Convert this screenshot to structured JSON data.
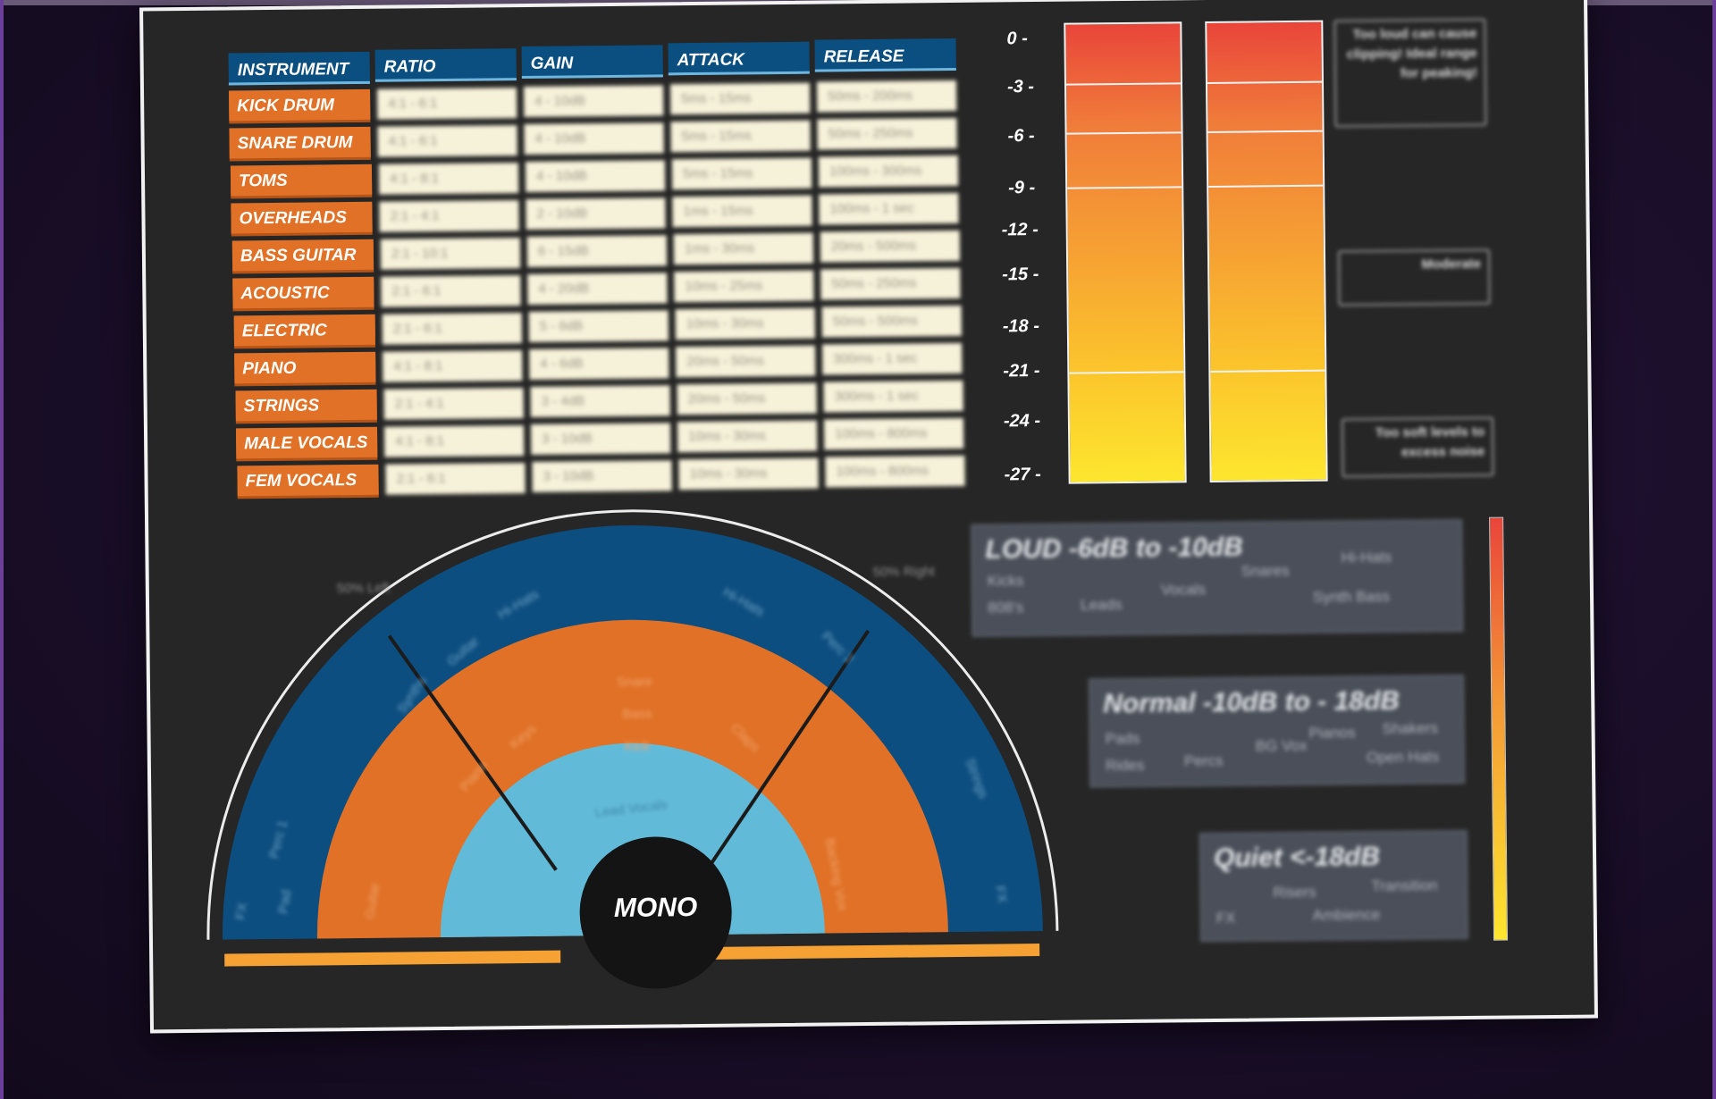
{
  "table": {
    "headers": [
      "INSTRUMENT",
      "RATIO",
      "GAIN",
      "ATTACK",
      "RELEASE"
    ],
    "rows": [
      {
        "instrument": "KICK DRUM",
        "ratio": "4:1 - 6:1",
        "gain": "4 - 10dB",
        "attack": "5ms - 15ms",
        "release": "50ms - 200ms"
      },
      {
        "instrument": "SNARE DRUM",
        "ratio": "4:1 - 6:1",
        "gain": "4 - 10dB",
        "attack": "5ms - 15ms",
        "release": "50ms - 250ms"
      },
      {
        "instrument": "TOMS",
        "ratio": "4:1 - 8:1",
        "gain": "4 - 10dB",
        "attack": "5ms - 15ms",
        "release": "100ms - 300ms"
      },
      {
        "instrument": "OVERHEADS",
        "ratio": "2:1 - 4:1",
        "gain": "2 - 10dB",
        "attack": "1ms - 15ms",
        "release": "100ms - 1 sec"
      },
      {
        "instrument": "BASS GUITAR",
        "ratio": "2:1 - 10:1",
        "gain": "6 - 15dB",
        "attack": "1ms - 30ms",
        "release": "20ms - 500ms"
      },
      {
        "instrument": "ACOUSTIC",
        "ratio": "2:1 - 6:1",
        "gain": "4 - 20dB",
        "attack": "10ms - 25ms",
        "release": "50ms - 250ms"
      },
      {
        "instrument": "ELECTRIC",
        "ratio": "2:1 - 6:1",
        "gain": "5 - 6dB",
        "attack": "10ms - 30ms",
        "release": "50ms - 500ms"
      },
      {
        "instrument": "PIANO",
        "ratio": "4:1 - 8:1",
        "gain": "4 - 6dB",
        "attack": "20ms - 50ms",
        "release": "300ms - 1 sec"
      },
      {
        "instrument": "STRINGS",
        "ratio": "2:1 - 4:1",
        "gain": "3 - 4dB",
        "attack": "20ms - 50ms",
        "release": "300ms - 1 sec"
      },
      {
        "instrument": "MALE VOCALS",
        "ratio": "4:1 - 8:1",
        "gain": "3 - 10dB",
        "attack": "10ms - 30ms",
        "release": "100ms - 800ms"
      },
      {
        "instrument": "FEM VOCALS",
        "ratio": "2:1 - 6:1",
        "gain": "3 - 10dB",
        "attack": "10ms - 30ms",
        "release": "100ms - 800ms"
      }
    ]
  },
  "meter": {
    "scale": [
      "0 -",
      "-3 -",
      "-6 -",
      "-9 -",
      "-12 -",
      "-15 -",
      "-18 -",
      "-21 -",
      "-24 -",
      "-27 -"
    ],
    "notes": {
      "top": "Too loud can cause clipping! Ideal range for peaking!",
      "middle": "Moderate",
      "bottom": "Too soft levels to excess noise"
    }
  },
  "levels": [
    {
      "title": "LOUD -6dB to -10dB",
      "words": [
        "Kicks",
        "Snares",
        "Hi-Hats",
        "808's",
        "Leads",
        "Vocals",
        "Synth Bass"
      ]
    },
    {
      "title": "Normal -10dB to - 18dB",
      "words": [
        "Pads",
        "Pianos",
        "Shakers",
        "Rides",
        "Percs",
        "BG Vox",
        "Open Hats"
      ]
    },
    {
      "title": "Quiet <-18dB",
      "words": [
        "Risers",
        "Transition",
        "FX",
        "Ambience"
      ]
    }
  ],
  "pan": {
    "center_label": "MONO",
    "left_label": "50% Left",
    "right_label": "50% Right",
    "outer_words": [
      "Synths",
      "Guitar",
      "Hi-Hats",
      "Hi-Hats",
      "Perc 2",
      "Perc 1",
      "FX",
      "Pad",
      "Strings",
      "FX"
    ],
    "middle_words": [
      "Snare",
      "Bass",
      "Kick",
      "Piano",
      "Keys",
      "Claps",
      "Guitar",
      "Backing Vox"
    ],
    "inner_words": [
      "Lead Vocals"
    ]
  }
}
